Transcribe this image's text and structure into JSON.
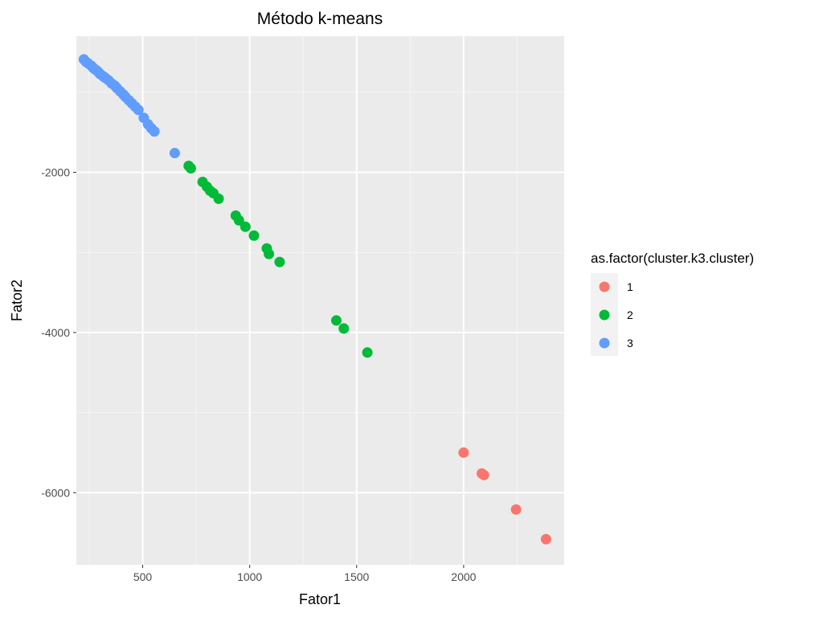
{
  "chart_data": {
    "type": "scatter",
    "title": "Método k-means",
    "xlabel": "Fator1",
    "ylabel": "Fator2",
    "xlim": [
      190,
      2470
    ],
    "ylim": [
      -6900,
      -300
    ],
    "x_ticks": [
      500,
      1000,
      1500,
      2000
    ],
    "x_tick_labels": [
      "500",
      "1000",
      "1500",
      "2000"
    ],
    "y_ticks": [
      -6000,
      -4000,
      -2000
    ],
    "y_tick_labels": [
      "-6000",
      "-4000",
      "-2000"
    ],
    "grid": true,
    "legend": {
      "title": "as.factor(cluster.k3.cluster)",
      "placement": "right"
    },
    "series": [
      {
        "name": "1",
        "color": "#F8766D",
        "points": [
          [
            2000,
            -5500
          ],
          [
            2085,
            -5760
          ],
          [
            2095,
            -5780
          ],
          [
            2245,
            -6210
          ],
          [
            2385,
            -6580
          ]
        ]
      },
      {
        "name": "2",
        "color": "#00BA38",
        "points": [
          [
            715,
            -1920
          ],
          [
            725,
            -1950
          ],
          [
            780,
            -2120
          ],
          [
            800,
            -2180
          ],
          [
            815,
            -2230
          ],
          [
            830,
            -2260
          ],
          [
            855,
            -2330
          ],
          [
            935,
            -2540
          ],
          [
            950,
            -2600
          ],
          [
            980,
            -2680
          ],
          [
            1020,
            -2790
          ],
          [
            1080,
            -2950
          ],
          [
            1090,
            -3020
          ],
          [
            1140,
            -3120
          ],
          [
            1405,
            -3850
          ],
          [
            1440,
            -3950
          ],
          [
            1550,
            -4250
          ]
        ]
      },
      {
        "name": "3",
        "color": "#619CFF",
        "points": [
          [
            225,
            -590
          ],
          [
            235,
            -620
          ],
          [
            245,
            -640
          ],
          [
            260,
            -670
          ],
          [
            270,
            -700
          ],
          [
            280,
            -720
          ],
          [
            290,
            -740
          ],
          [
            300,
            -770
          ],
          [
            315,
            -800
          ],
          [
            325,
            -820
          ],
          [
            340,
            -850
          ],
          [
            355,
            -890
          ],
          [
            370,
            -920
          ],
          [
            380,
            -950
          ],
          [
            395,
            -990
          ],
          [
            410,
            -1030
          ],
          [
            420,
            -1060
          ],
          [
            435,
            -1100
          ],
          [
            450,
            -1140
          ],
          [
            465,
            -1180
          ],
          [
            480,
            -1220
          ],
          [
            505,
            -1320
          ],
          [
            525,
            -1400
          ],
          [
            540,
            -1450
          ],
          [
            555,
            -1490
          ],
          [
            650,
            -1760
          ]
        ]
      }
    ]
  }
}
